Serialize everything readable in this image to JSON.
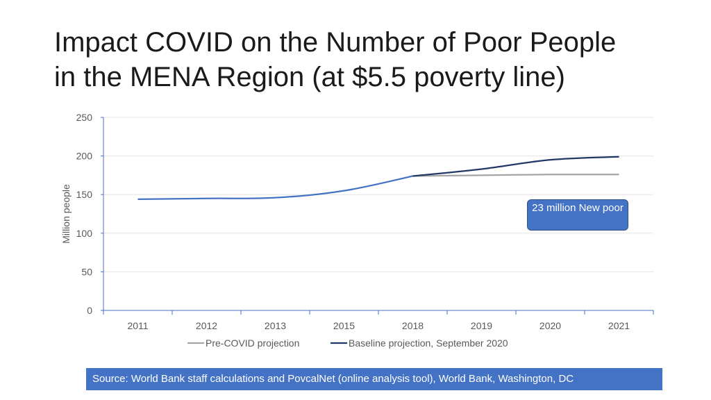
{
  "title": {
    "line1": "Impact COVID on the Number of Poor People",
    "line2": "in the MENA Region (at $5.5 poverty line)"
  },
  "chart_data": {
    "type": "line",
    "categories": [
      "2011",
      "2012",
      "2013",
      "2015",
      "2018",
      "2019",
      "2020",
      "2021"
    ],
    "series": [
      {
        "name": "Pre-COVID projection",
        "color": "#a5a5a5",
        "values": [
          null,
          null,
          null,
          null,
          174,
          175,
          176,
          176
        ]
      },
      {
        "name": "Baseline projection, September 2020",
        "color": "#4472c4",
        "color_projection": "#203864",
        "values": [
          144,
          145,
          146,
          155,
          174,
          183,
          195,
          199
        ]
      }
    ],
    "ylabel": "Million people",
    "xlabel": "",
    "ylim": [
      0,
      250
    ],
    "yticks": [
      "0",
      "50",
      "100",
      "150",
      "200",
      "250"
    ],
    "grid": true,
    "legend": "bottom",
    "annotation": "23 million New poor"
  },
  "source": "Source: World Bank staff calculations and PovcalNet (online analysis tool), World Bank, Washington, DC"
}
